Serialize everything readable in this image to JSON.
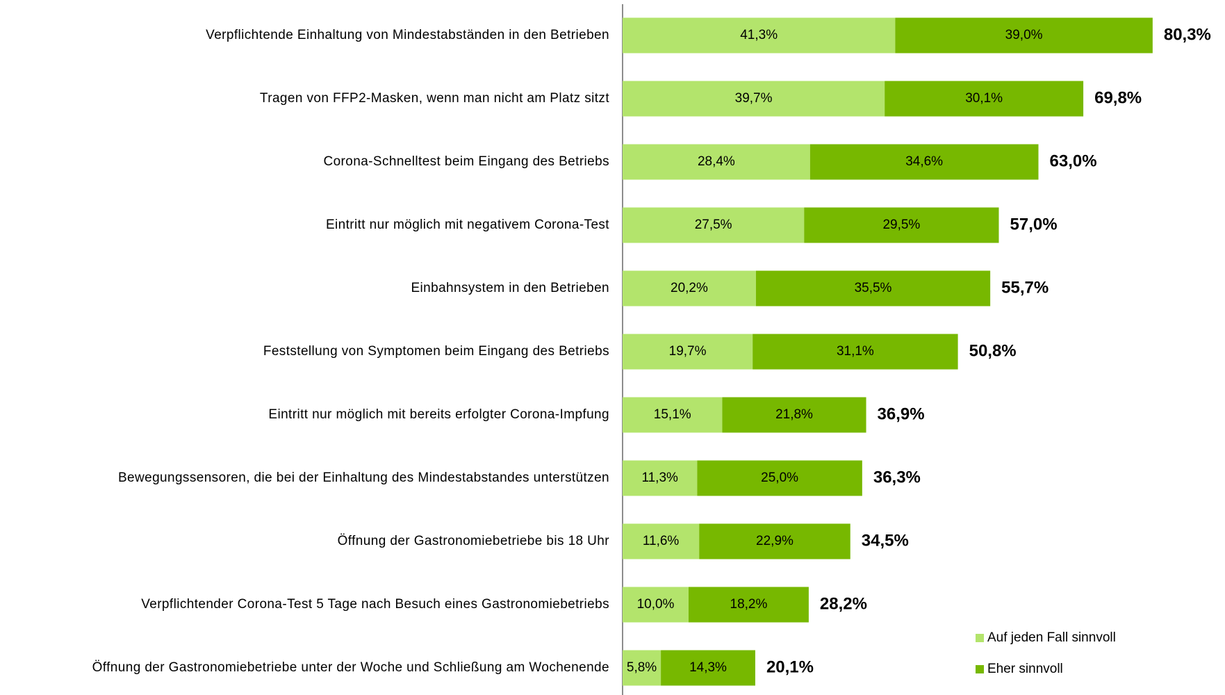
{
  "chart_data": {
    "type": "stacked-barh",
    "categories": [
      "Verpflichtende Einhaltung von Mindestabständen in den Betrieben",
      "Tragen von FFP2-Masken, wenn man nicht am Platz sitzt",
      "Corona-Schnelltest beim Eingang des Betriebs",
      "Eintritt nur möglich mit negativem Corona-Test",
      "Einbahnsystem in den Betrieben",
      "Feststellung von Symptomen beim Eingang des Betriebs",
      "Eintritt nur möglich mit bereits erfolgter Corona-Impfung",
      "Bewegungssensoren, die bei der Einhaltung des Mindestabstandes unterstützen",
      "Öffnung der Gastronomiebetriebe bis 18 Uhr",
      "Verpflichtender Corona-Test 5 Tage nach Besuch eines Gastronomiebetriebs",
      "Öffnung der Gastronomiebetriebe unter der Woche und Schließung am Wochenende"
    ],
    "series": [
      {
        "name": "Auf jeden Fall sinnvoll",
        "color": "#b3e46c",
        "values": [
          41.3,
          39.7,
          28.4,
          27.5,
          20.2,
          19.7,
          15.1,
          11.3,
          11.6,
          10.0,
          5.8
        ],
        "value_labels": [
          "41,3%",
          "39,7%",
          "28,4%",
          "27,5%",
          "20,2%",
          "19,7%",
          "15,1%",
          "11,3%",
          "11,6%",
          "10,0%",
          "5,8%"
        ]
      },
      {
        "name": "Eher sinnvoll",
        "color": "#77b800",
        "values": [
          39.0,
          30.1,
          34.6,
          29.5,
          35.5,
          31.1,
          21.8,
          25.0,
          22.9,
          18.2,
          14.3
        ],
        "value_labels": [
          "39,0%",
          "30,1%",
          "34,6%",
          "29,5%",
          "35,5%",
          "31,1%",
          "21,8%",
          "25,0%",
          "22,9%",
          "18,2%",
          "14,3%"
        ]
      }
    ],
    "totals": {
      "values": [
        80.3,
        69.8,
        63.0,
        57.0,
        55.7,
        50.8,
        36.9,
        36.3,
        34.5,
        28.2,
        20.1
      ],
      "value_labels": [
        "80,3%",
        "69,8%",
        "63,0%",
        "57,0%",
        "55,7%",
        "50,8%",
        "36,9%",
        "36,3%",
        "34,5%",
        "28,2%",
        "20,1%"
      ]
    },
    "xlim": [
      0,
      90
    ],
    "legend": "lower right"
  }
}
